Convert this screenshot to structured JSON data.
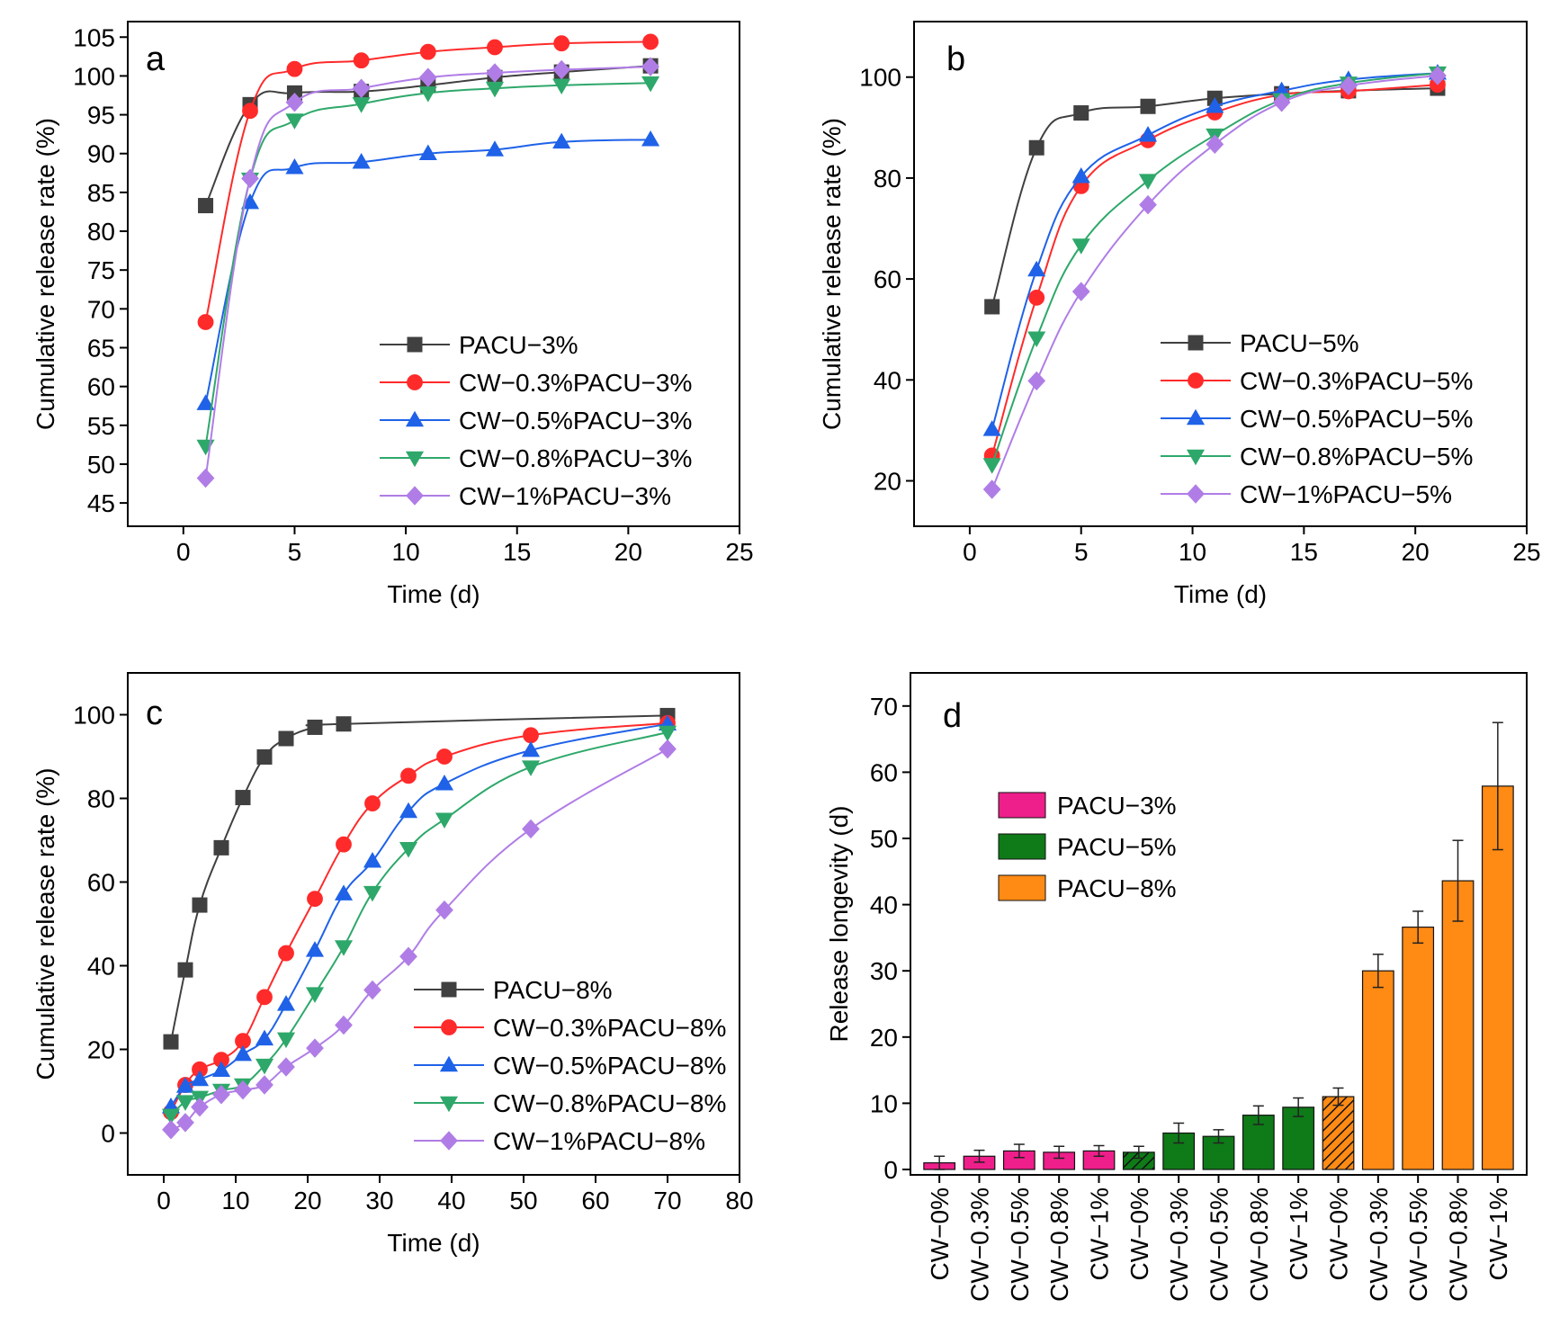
{
  "panels": [
    {
      "id": "a",
      "chart_data": {
        "type": "line",
        "panel_label": "a",
        "xlabel": "Time (d)",
        "ylabel": "Cumulative release rate (%)",
        "xlim": [
          -2.5,
          25
        ],
        "ylim": [
          42,
          107
        ],
        "xticks": [
          0,
          5,
          10,
          15,
          20,
          25
        ],
        "yticks": [
          45,
          50,
          55,
          60,
          65,
          70,
          75,
          80,
          85,
          90,
          95,
          100,
          105
        ],
        "legend_position": "bottom-right",
        "series": [
          {
            "name": "PACU−3%",
            "color": "#404040",
            "marker": "square",
            "x": [
              1,
              3,
              5,
              8,
              11,
              14,
              17,
              21
            ],
            "y": [
              83.3,
              96.3,
              97.8,
              98.0,
              98.8,
              99.8,
              100.5,
              101.3
            ]
          },
          {
            "name": "CW−0.3%PACU−3%",
            "color": "#ff2a2a",
            "marker": "circle",
            "x": [
              1,
              3,
              5,
              8,
              11,
              14,
              17,
              21
            ],
            "y": [
              68.3,
              95.5,
              100.9,
              102.0,
              103.1,
              103.7,
              104.2,
              104.4
            ]
          },
          {
            "name": "CW−0.5%PACU−3%",
            "color": "#1f62e8",
            "marker": "triangle-up",
            "x": [
              1,
              3,
              5,
              8,
              11,
              14,
              17,
              21
            ],
            "y": [
              57.8,
              83.7,
              88.2,
              88.9,
              90.0,
              90.5,
              91.5,
              91.8
            ]
          },
          {
            "name": "CW−0.8%PACU−3%",
            "color": "#2ea86a",
            "marker": "triangle-down",
            "x": [
              1,
              3,
              5,
              8,
              11,
              14,
              17,
              21
            ],
            "y": [
              52.3,
              86.7,
              94.3,
              96.4,
              97.8,
              98.4,
              98.8,
              99.1
            ]
          },
          {
            "name": "CW−1%PACU−3%",
            "color": "#b07de6",
            "marker": "diamond",
            "x": [
              1,
              3,
              5,
              8,
              11,
              14,
              17,
              21
            ],
            "y": [
              48.2,
              86.8,
              96.6,
              98.4,
              99.8,
              100.4,
              100.8,
              101.2
            ]
          }
        ]
      }
    },
    {
      "id": "b",
      "chart_data": {
        "type": "line",
        "panel_label": "b",
        "xlabel": "Time (d)",
        "ylabel": "Cumulative release rate (%)",
        "xlim": [
          -2.5,
          25
        ],
        "ylim": [
          11,
          111
        ],
        "xticks": [
          0,
          5,
          10,
          15,
          20,
          25
        ],
        "yticks": [
          20,
          40,
          60,
          80,
          100
        ],
        "legend_position": "bottom-right",
        "series": [
          {
            "name": "PACU−5%",
            "color": "#404040",
            "marker": "square",
            "x": [
              1,
              3,
              5,
              8,
              11,
              14,
              17,
              21
            ],
            "y": [
              54.5,
              86.0,
              92.9,
              94.2,
              95.8,
              96.7,
              97.3,
              97.8
            ]
          },
          {
            "name": "CW−0.3%PACU−5%",
            "color": "#ff2a2a",
            "marker": "circle",
            "x": [
              1,
              3,
              5,
              8,
              11,
              14,
              17,
              21
            ],
            "y": [
              25.0,
              56.3,
              78.4,
              87.5,
              93.0,
              96.5,
              97.2,
              98.5
            ]
          },
          {
            "name": "CW−0.5%PACU−5%",
            "color": "#1f62e8",
            "marker": "triangle-up",
            "x": [
              1,
              3,
              5,
              8,
              11,
              14,
              17,
              21
            ],
            "y": [
              30.2,
              61.8,
              80.3,
              88.5,
              94.2,
              97.3,
              99.5,
              100.8
            ]
          },
          {
            "name": "CW−0.8%PACU−5%",
            "color": "#2ea86a",
            "marker": "triangle-down",
            "x": [
              1,
              3,
              5,
              8,
              11,
              14,
              17,
              21
            ],
            "y": [
              23.2,
              48.3,
              66.7,
              79.5,
              88.5,
              95.5,
              98.8,
              100.8
            ]
          },
          {
            "name": "CW−1%PACU−5%",
            "color": "#b07de6",
            "marker": "diamond",
            "x": [
              1,
              3,
              5,
              8,
              11,
              14,
              17,
              21
            ],
            "y": [
              18.3,
              39.8,
              57.5,
              74.7,
              86.7,
              95.0,
              98.3,
              100.3
            ]
          }
        ]
      }
    },
    {
      "id": "c",
      "chart_data": {
        "type": "line",
        "panel_label": "c",
        "xlabel": "Time (d)",
        "ylabel": "Cumulative release rate (%)",
        "xlim": [
          -5,
          80
        ],
        "ylim": [
          -10,
          110
        ],
        "xticks": [
          0,
          10,
          20,
          30,
          40,
          50,
          60,
          70,
          80
        ],
        "yticks": [
          0,
          20,
          40,
          60,
          80,
          100
        ],
        "legend_position": "bottom-right",
        "series": [
          {
            "name": "PACU−8%",
            "color": "#404040",
            "marker": "square",
            "x": [
              1,
              3,
              5,
              8,
              11,
              14,
              17,
              21,
              25,
              70
            ],
            "y": [
              21.8,
              39.0,
              54.5,
              68.2,
              80.2,
              89.9,
              94.3,
              97.0,
              97.8,
              99.8
            ]
          },
          {
            "name": "CW−0.3%PACU−8%",
            "color": "#ff2a2a",
            "marker": "circle",
            "x": [
              1,
              3,
              5,
              8,
              11,
              14,
              17,
              21,
              25,
              29,
              34,
              39,
              51,
              70
            ],
            "y": [
              5.0,
              11.5,
              15.2,
              17.5,
              22.0,
              32.5,
              43.0,
              56.0,
              69.0,
              78.8,
              85.4,
              90.0,
              95.1,
              98.0
            ]
          },
          {
            "name": "CW−0.5%PACU−8%",
            "color": "#1f62e8",
            "marker": "triangle-up",
            "x": [
              1,
              3,
              5,
              8,
              11,
              14,
              17,
              21,
              25,
              29,
              34,
              39,
              51,
              70
            ],
            "y": [
              6.3,
              11.2,
              12.8,
              15.0,
              18.8,
              22.5,
              30.8,
              43.7,
              57.2,
              65.0,
              76.9,
              83.5,
              91.5,
              97.8
            ]
          },
          {
            "name": "CW−0.8%PACU−8%",
            "color": "#2ea86a",
            "marker": "triangle-down",
            "x": [
              1,
              3,
              5,
              8,
              11,
              14,
              17,
              21,
              25,
              29,
              34,
              39,
              51,
              70
            ],
            "y": [
              4.2,
              7.5,
              8.5,
              10.2,
              11.5,
              16.2,
              22.5,
              33.3,
              44.5,
              57.5,
              68.0,
              75.0,
              87.5,
              95.8
            ]
          },
          {
            "name": "CW−1%PACU−8%",
            "color": "#b07de6",
            "marker": "diamond",
            "x": [
              1,
              3,
              5,
              8,
              11,
              14,
              17,
              21,
              25,
              29,
              34,
              39,
              51,
              70
            ],
            "y": [
              0.8,
              2.5,
              6.2,
              9.2,
              10.3,
              11.5,
              15.8,
              20.3,
              25.8,
              34.2,
              42.2,
              53.3,
              72.7,
              91.8
            ]
          }
        ]
      }
    },
    {
      "id": "d",
      "chart_data": {
        "type": "bar",
        "panel_label": "d",
        "xlabel": "",
        "ylabel": "Release longevity (d)",
        "ylim": [
          0,
          75
        ],
        "yticks": [
          0,
          10,
          20,
          30,
          40,
          50,
          60,
          70
        ],
        "legend_position": "top-left",
        "legend": [
          {
            "name": "PACU−3%",
            "color": "#ee1f8a"
          },
          {
            "name": "PACU−5%",
            "color": "#0f7a18"
          },
          {
            "name": "PACU−8%",
            "color": "#ff8a14"
          }
        ],
        "categories": [
          "CW−0%",
          "CW−0.3%",
          "CW−0.5%",
          "CW−0.8%",
          "CW−1%",
          "CW−0%",
          "CW−0.3%",
          "CW−0.5%",
          "CW−0.8%",
          "CW−1%",
          "CW−0%",
          "CW−0.3%",
          "CW−0.5%",
          "CW−0.8%",
          "CW−1%"
        ],
        "groups": [
          "PACU−3%",
          "PACU−3%",
          "PACU−3%",
          "PACU−3%",
          "PACU−3%",
          "PACU−5%",
          "PACU−5%",
          "PACU−5%",
          "PACU−5%",
          "PACU−5%",
          "PACU−8%",
          "PACU−8%",
          "PACU−8%",
          "PACU−8%",
          "PACU−8%"
        ],
        "values": [
          1.0,
          2.0,
          2.8,
          2.6,
          2.8,
          2.6,
          5.5,
          5.0,
          8.2,
          9.4,
          11.0,
          30.0,
          36.6,
          43.6,
          57.9
        ],
        "errors": [
          1.0,
          0.9,
          1.0,
          0.9,
          0.8,
          0.9,
          1.5,
          1.0,
          1.4,
          1.4,
          1.3,
          2.5,
          2.4,
          6.1,
          9.6
        ],
        "hatched": [
          false,
          false,
          false,
          false,
          false,
          true,
          false,
          false,
          false,
          false,
          true,
          false,
          false,
          false,
          false
        ]
      }
    }
  ]
}
